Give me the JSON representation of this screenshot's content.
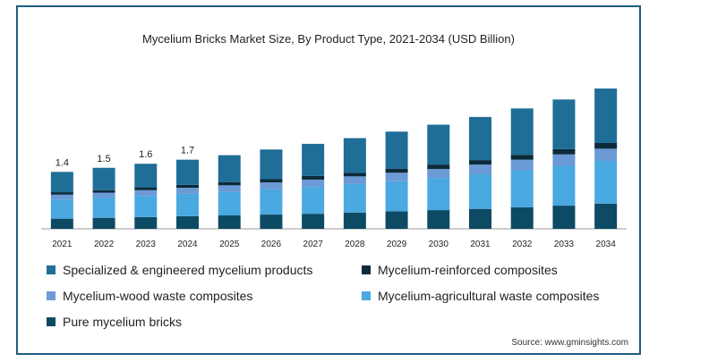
{
  "chart_data": {
    "type": "bar",
    "stacked": true,
    "title": "Mycelium Bricks Market Size, By Product Type, 2021-2034 (USD Billion)",
    "categories": [
      "2021",
      "2022",
      "2023",
      "2024",
      "2025",
      "2026",
      "2027",
      "2028",
      "2029",
      "2030",
      "2031",
      "2032",
      "2033",
      "2034"
    ],
    "total_labels": [
      "1.4",
      "1.5",
      "1.6",
      "1.7",
      "",
      "",
      "",
      "",
      "",
      "",
      "",
      "",
      "",
      ""
    ],
    "series": [
      {
        "name": "Pure mycelium bricks",
        "color": "#0d4a63",
        "values": [
          0.25,
          0.27,
          0.29,
          0.31,
          0.33,
          0.35,
          0.37,
          0.4,
          0.43,
          0.46,
          0.49,
          0.53,
          0.57,
          0.62
        ]
      },
      {
        "name": "Mycelium-agricultural waste composites",
        "color": "#4aa9e0",
        "values": [
          0.47,
          0.49,
          0.52,
          0.55,
          0.58,
          0.62,
          0.66,
          0.7,
          0.74,
          0.79,
          0.85,
          0.91,
          0.98,
          1.05
        ]
      },
      {
        "name": "Mycelium-wood waste composites",
        "color": "#6b9ad6",
        "values": [
          0.12,
          0.13,
          0.14,
          0.15,
          0.16,
          0.17,
          0.18,
          0.19,
          0.21,
          0.22,
          0.24,
          0.26,
          0.28,
          0.3
        ]
      },
      {
        "name": "Mycelium-reinforced composites",
        "color": "#0b2a3a",
        "values": [
          0.06,
          0.06,
          0.07,
          0.07,
          0.08,
          0.08,
          0.09,
          0.09,
          0.1,
          0.11,
          0.11,
          0.12,
          0.13,
          0.14
        ]
      },
      {
        "name": "Specialized & engineered mycelium products",
        "color": "#1f6e97",
        "values": [
          0.5,
          0.55,
          0.58,
          0.62,
          0.66,
          0.73,
          0.79,
          0.85,
          0.91,
          0.98,
          1.06,
          1.14,
          1.22,
          1.34
        ]
      }
    ],
    "ylim": [
      0,
      3.6
    ],
    "grid": false,
    "legend_position": "bottom"
  },
  "legend": [
    {
      "label": "Specialized & engineered mycelium products",
      "color": "#1f6e97"
    },
    {
      "label": "Mycelium-reinforced composites",
      "color": "#0b2a3a"
    },
    {
      "label": "Mycelium-wood waste composites",
      "color": "#6b9ad6"
    },
    {
      "label": "Mycelium-agricultural waste composites",
      "color": "#4aa9e0"
    },
    {
      "label": "Pure mycelium bricks",
      "color": "#0d4a63"
    }
  ],
  "source": "Source: www.gminsights.com"
}
